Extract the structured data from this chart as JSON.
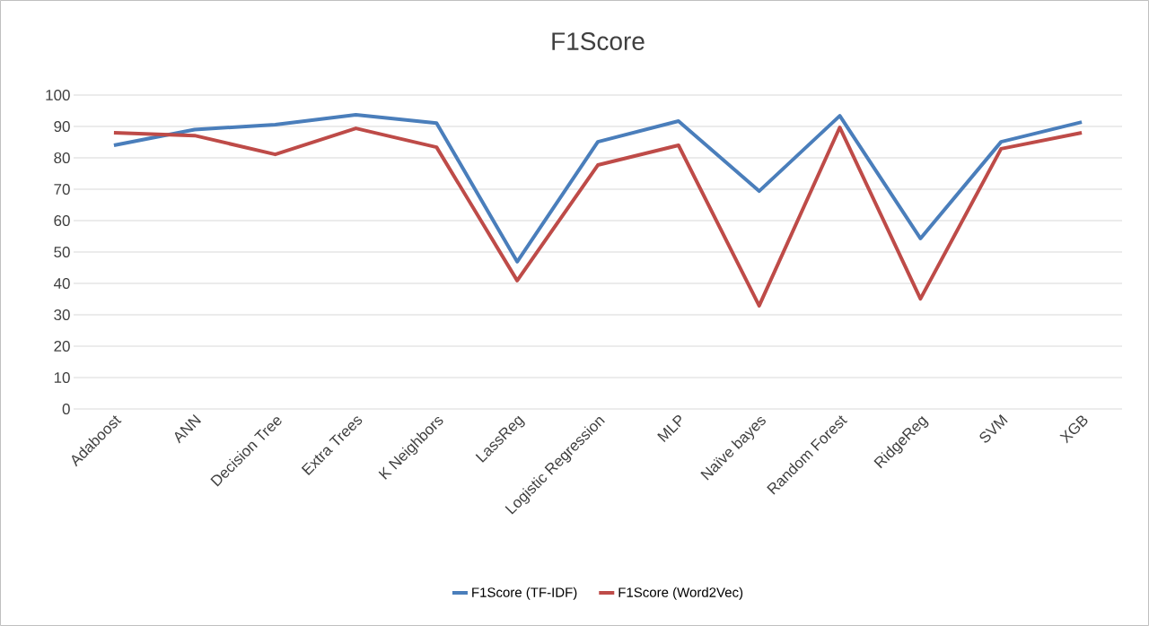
{
  "chart_data": {
    "type": "line",
    "title": "F1Score",
    "categories": [
      "Adaboost",
      "ANN",
      "Decision Tree",
      "Extra Trees",
      "K Neighbors",
      "LassReg",
      "Logistic Regression",
      "MLP",
      "Naïve bayes",
      "Random Forest",
      "RidgeReg",
      "SVM",
      "XGB"
    ],
    "series": [
      {
        "name": "F1Score (TF-IDF)",
        "color": "#4a7ebb",
        "values": [
          84,
          89,
          90.6,
          93.7,
          91.1,
          46.9,
          85.1,
          91.7,
          69.4,
          93.4,
          54.3,
          85.1,
          91.4
        ]
      },
      {
        "name": "F1Score  (Word2Vec)",
        "color": "#be4b48",
        "values": [
          88,
          87.1,
          81.1,
          89.4,
          83.4,
          40.9,
          77.7,
          84,
          32.9,
          89.7,
          35.1,
          82.9,
          88
        ]
      }
    ],
    "ylim": [
      0,
      100
    ],
    "yticks": [
      0,
      10,
      20,
      30,
      40,
      50,
      60,
      70,
      80,
      90,
      100
    ],
    "grid": "y",
    "legend": "bottom",
    "marker": "none",
    "line_style": "solid"
  }
}
